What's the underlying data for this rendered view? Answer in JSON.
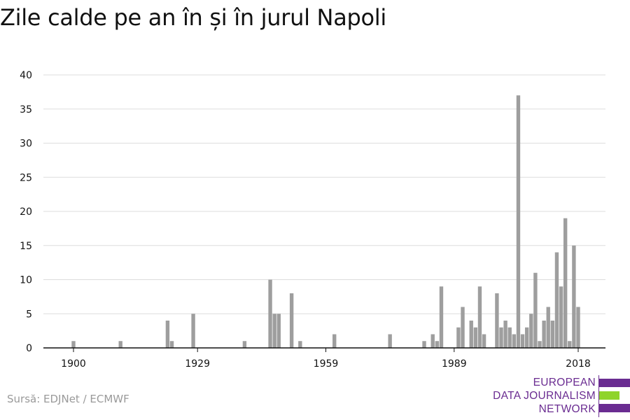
{
  "title": "Zile calde pe an în și în jurul Napoli",
  "source": "Sursă: EDJNet / ECMWF",
  "logo": {
    "lines": [
      "EUROPEAN",
      "DATA JOURNALISM",
      "NETWORK"
    ],
    "color_primary": "#6a2c91",
    "color_accent": "#8fd42a"
  },
  "colors": {
    "bar": "#9e9e9e",
    "grid": "#dddddd",
    "axis": "#111111"
  },
  "chart_data": {
    "type": "bar",
    "title": "Zile calde pe an în și în jurul Napoli",
    "xlabel": "",
    "ylabel": "",
    "xlim": [
      1900,
      2018
    ],
    "ylim": [
      0,
      40
    ],
    "grid": true,
    "x_ticks": [
      1900,
      1929,
      1959,
      1989,
      2018
    ],
    "y_ticks": [
      0,
      5,
      10,
      15,
      20,
      25,
      30,
      35,
      40
    ],
    "x": [
      1900,
      1911,
      1922,
      1923,
      1928,
      1940,
      1946,
      1947,
      1948,
      1951,
      1953,
      1961,
      1974,
      1982,
      1984,
      1985,
      1986,
      1990,
      1991,
      1993,
      1994,
      1995,
      1996,
      1999,
      2000,
      2001,
      2002,
      2003,
      2004,
      2005,
      2006,
      2007,
      2008,
      2009,
      2010,
      2011,
      2012,
      2013,
      2014,
      2015,
      2016,
      2017,
      2018
    ],
    "values": [
      1,
      1,
      4,
      1,
      5,
      1,
      10,
      5,
      5,
      8,
      1,
      2,
      2,
      1,
      2,
      1,
      9,
      3,
      6,
      4,
      3,
      9,
      2,
      8,
      3,
      4,
      3,
      2,
      37,
      2,
      3,
      5,
      11,
      1,
      4,
      6,
      4,
      14,
      9,
      19,
      1,
      15,
      6
    ]
  }
}
